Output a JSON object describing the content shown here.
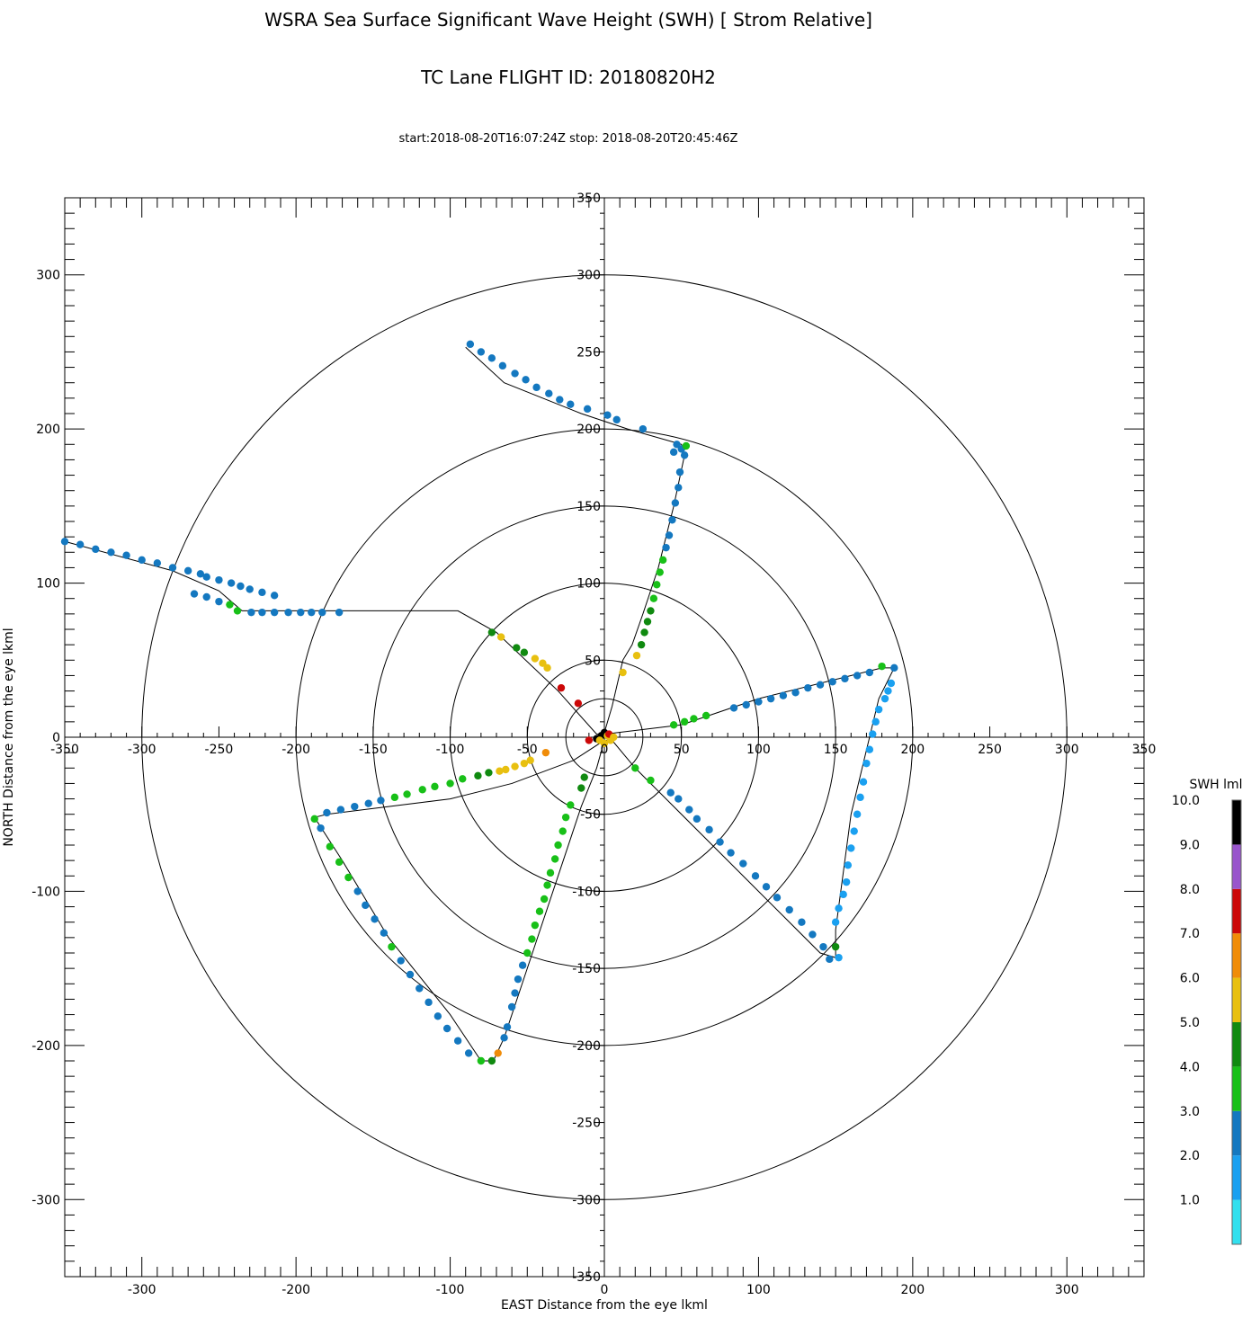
{
  "chart_data": {
    "type": "scatter",
    "title": "WSRA Sea Surface Significant Wave Height (SWH) [ Strom Relative]",
    "subtitle": "TC Lane FLIGHT ID: 20180820H2",
    "time_range": "start:2018-08-20T16:07:24Z stop: 2018-08-20T20:45:46Z",
    "xlabel": "EAST Distance from the eye lkml",
    "ylabel": "NORTH Distance from the eye lkml",
    "xlim": [
      -350,
      350
    ],
    "ylim": [
      -350,
      350
    ],
    "outer_ticks": {
      "x": [
        "-300",
        "-200",
        "-100",
        "0",
        "100",
        "200",
        "300"
      ],
      "y": [
        "-300",
        "-200",
        "-100",
        "0",
        "100",
        "200",
        "300"
      ]
    },
    "axis_ticks": [
      "-350",
      "-300",
      "-250",
      "-200",
      "-150",
      "-100",
      "-50",
      "0",
      "50",
      "100",
      "150",
      "200",
      "250",
      "300",
      "350"
    ],
    "range_rings_km": [
      25,
      50,
      100,
      150,
      200,
      300
    ],
    "colorbar": {
      "title": "SWH lml",
      "labels": [
        "1.0",
        "2.0",
        "3.0",
        "4.0",
        "5.0",
        "6.0",
        "7.0",
        "8.0",
        "9.0",
        "10.0"
      ],
      "colors": [
        "#33e0ee",
        "#1aa0f0",
        "#1478c0",
        "#18c018",
        "#108a10",
        "#e8c010",
        "#f08c08",
        "#cc0808",
        "#9955cc",
        "#000000"
      ]
    },
    "flight_track": [
      [
        -90,
        253
      ],
      [
        -65,
        230
      ],
      [
        -15,
        210
      ],
      [
        15,
        200
      ],
      [
        50,
        190
      ],
      [
        52,
        183
      ],
      [
        45,
        150
      ],
      [
        35,
        110
      ],
      [
        25,
        80
      ],
      [
        18,
        60
      ],
      [
        12,
        50
      ],
      [
        5,
        20
      ],
      [
        0,
        3
      ],
      [
        0,
        -2
      ],
      [
        -20,
        -15
      ],
      [
        -60,
        -30
      ],
      [
        -100,
        -40
      ],
      [
        -180,
        -50
      ],
      [
        -188,
        -52
      ],
      [
        -170,
        -80
      ],
      [
        -140,
        -130
      ],
      [
        -100,
        -180
      ],
      [
        -80,
        -210
      ],
      [
        -72,
        -210
      ],
      [
        -65,
        -195
      ],
      [
        -50,
        -150
      ],
      [
        -15,
        -45
      ],
      [
        -5,
        -20
      ],
      [
        0,
        -2
      ],
      [
        5,
        -2
      ],
      [
        20,
        -20
      ],
      [
        60,
        -60
      ],
      [
        140,
        -140
      ],
      [
        150,
        -143
      ],
      [
        150,
        -125
      ],
      [
        160,
        -50
      ],
      [
        178,
        25
      ],
      [
        188,
        45
      ],
      [
        180,
        45
      ],
      [
        100,
        25
      ],
      [
        50,
        8
      ],
      [
        0,
        2
      ],
      [
        -5,
        2
      ],
      [
        -30,
        30
      ],
      [
        -70,
        68
      ],
      [
        -95,
        82
      ],
      [
        -235,
        82
      ],
      [
        -250,
        95
      ],
      [
        -280,
        108
      ],
      [
        -350,
        127
      ]
    ],
    "points": [
      [
        -350,
        127,
        2
      ],
      [
        -340,
        125,
        2
      ],
      [
        -330,
        122,
        2
      ],
      [
        -320,
        120,
        2
      ],
      [
        -310,
        118,
        2
      ],
      [
        -300,
        115,
        2
      ],
      [
        -290,
        113,
        2
      ],
      [
        -280,
        110,
        2
      ],
      [
        -270,
        108,
        2
      ],
      [
        -262,
        106,
        2
      ],
      [
        -258,
        104,
        2
      ],
      [
        -250,
        102,
        2
      ],
      [
        -242,
        100,
        2
      ],
      [
        -236,
        98,
        2
      ],
      [
        -230,
        96,
        2
      ],
      [
        -222,
        94,
        2
      ],
      [
        -214,
        92,
        2
      ],
      [
        -266,
        93,
        2
      ],
      [
        -258,
        91,
        2
      ],
      [
        -250,
        88,
        2
      ],
      [
        -243,
        86,
        3
      ],
      [
        -238,
        82,
        3
      ],
      [
        -229,
        81,
        2
      ],
      [
        -222,
        81,
        2
      ],
      [
        -214,
        81,
        2
      ],
      [
        -205,
        81,
        2
      ],
      [
        -197,
        81,
        2
      ],
      [
        -190,
        81,
        2
      ],
      [
        -183,
        81,
        2
      ],
      [
        -172,
        81,
        2
      ],
      [
        -73,
        68,
        4
      ],
      [
        -67,
        65,
        5
      ],
      [
        -57,
        58,
        4
      ],
      [
        -52,
        55,
        4
      ],
      [
        -45,
        51,
        5
      ],
      [
        -40,
        48,
        5
      ],
      [
        -37,
        45,
        5
      ],
      [
        -28,
        32,
        7
      ],
      [
        -17,
        22,
        7
      ],
      [
        -10,
        -2,
        7
      ],
      [
        -5,
        -1,
        9
      ],
      [
        -2,
        1,
        9
      ],
      [
        0,
        3,
        9
      ],
      [
        2,
        1,
        5
      ],
      [
        4,
        -2,
        5
      ],
      [
        0,
        -4,
        5
      ],
      [
        -3,
        -2,
        5
      ],
      [
        3,
        2,
        7
      ],
      [
        6,
        0,
        5
      ],
      [
        -38,
        -10,
        6
      ],
      [
        -48,
        -15,
        5
      ],
      [
        -52,
        -17,
        5
      ],
      [
        -58,
        -19,
        5
      ],
      [
        -64,
        -21,
        5
      ],
      [
        -68,
        -22,
        5
      ],
      [
        -75,
        -23,
        4
      ],
      [
        -82,
        -25,
        4
      ],
      [
        -92,
        -27,
        3
      ],
      [
        -100,
        -30,
        3
      ],
      [
        -110,
        -32,
        3
      ],
      [
        -118,
        -34,
        3
      ],
      [
        -128,
        -37,
        3
      ],
      [
        -136,
        -39,
        3
      ],
      [
        -145,
        -41,
        2
      ],
      [
        -153,
        -43,
        2
      ],
      [
        -162,
        -45,
        2
      ],
      [
        -171,
        -47,
        2
      ],
      [
        -180,
        -49,
        2
      ],
      [
        -188,
        -53,
        3
      ],
      [
        -184,
        -59,
        2
      ],
      [
        -178,
        -71,
        3
      ],
      [
        -172,
        -81,
        3
      ],
      [
        -166,
        -91,
        3
      ],
      [
        -160,
        -100,
        2
      ],
      [
        -155,
        -109,
        2
      ],
      [
        -149,
        -118,
        2
      ],
      [
        -143,
        -127,
        2
      ],
      [
        -138,
        -136,
        3
      ],
      [
        -132,
        -145,
        2
      ],
      [
        -126,
        -154,
        2
      ],
      [
        -120,
        -163,
        2
      ],
      [
        -114,
        -172,
        2
      ],
      [
        -108,
        -181,
        2
      ],
      [
        -102,
        -189,
        2
      ],
      [
        -95,
        -197,
        2
      ],
      [
        -88,
        -205,
        2
      ],
      [
        -80,
        -210,
        3
      ],
      [
        -73,
        -210,
        4
      ],
      [
        -69,
        -205,
        6
      ],
      [
        -65,
        -195,
        2
      ],
      [
        -63,
        -188,
        2
      ],
      [
        -60,
        -175,
        2
      ],
      [
        -58,
        -166,
        2
      ],
      [
        -56,
        -157,
        2
      ],
      [
        -53,
        -148,
        2
      ],
      [
        -50,
        -140,
        3
      ],
      [
        -47,
        -131,
        3
      ],
      [
        -45,
        -122,
        3
      ],
      [
        -42,
        -113,
        3
      ],
      [
        -39,
        -105,
        3
      ],
      [
        -37,
        -96,
        3
      ],
      [
        -35,
        -88,
        3
      ],
      [
        -32,
        -79,
        3
      ],
      [
        -30,
        -70,
        3
      ],
      [
        -27,
        -61,
        3
      ],
      [
        -25,
        -52,
        3
      ],
      [
        -22,
        -44,
        3
      ],
      [
        -15,
        -33,
        4
      ],
      [
        -13,
        -26,
        4
      ],
      [
        20,
        -20,
        3
      ],
      [
        30,
        -28,
        3
      ],
      [
        43,
        -36,
        2
      ],
      [
        48,
        -40,
        2
      ],
      [
        55,
        -47,
        2
      ],
      [
        60,
        -53,
        2
      ],
      [
        68,
        -60,
        2
      ],
      [
        75,
        -68,
        2
      ],
      [
        82,
        -75,
        2
      ],
      [
        90,
        -82,
        2
      ],
      [
        98,
        -90,
        2
      ],
      [
        105,
        -97,
        2
      ],
      [
        112,
        -104,
        2
      ],
      [
        120,
        -112,
        2
      ],
      [
        128,
        -120,
        2
      ],
      [
        135,
        -128,
        2
      ],
      [
        142,
        -136,
        2
      ],
      [
        146,
        -144,
        2
      ],
      [
        150,
        -136,
        4
      ],
      [
        152,
        -143,
        1
      ],
      [
        150,
        -120,
        1
      ],
      [
        152,
        -111,
        1
      ],
      [
        155,
        -102,
        1
      ],
      [
        157,
        -94,
        1
      ],
      [
        158,
        -83,
        1
      ],
      [
        160,
        -72,
        1
      ],
      [
        162,
        -61,
        1
      ],
      [
        164,
        -50,
        1
      ],
      [
        166,
        -39,
        1
      ],
      [
        168,
        -29,
        1
      ],
      [
        170,
        -17,
        1
      ],
      [
        172,
        -8,
        1
      ],
      [
        174,
        2,
        1
      ],
      [
        176,
        10,
        1
      ],
      [
        178,
        18,
        1
      ],
      [
        182,
        25,
        1
      ],
      [
        184,
        30,
        1
      ],
      [
        186,
        35,
        1
      ],
      [
        188,
        45,
        2
      ],
      [
        180,
        46,
        3
      ],
      [
        172,
        42,
        2
      ],
      [
        164,
        40,
        2
      ],
      [
        156,
        38,
        2
      ],
      [
        148,
        36,
        2
      ],
      [
        140,
        34,
        2
      ],
      [
        132,
        32,
        2
      ],
      [
        124,
        29,
        2
      ],
      [
        116,
        27,
        2
      ],
      [
        108,
        25,
        2
      ],
      [
        100,
        23,
        2
      ],
      [
        92,
        21,
        2
      ],
      [
        84,
        19,
        2
      ],
      [
        66,
        14,
        3
      ],
      [
        58,
        12,
        3
      ],
      [
        52,
        10,
        3
      ],
      [
        45,
        8,
        3
      ],
      [
        -87,
        255,
        2
      ],
      [
        -80,
        250,
        2
      ],
      [
        -73,
        246,
        2
      ],
      [
        -66,
        241,
        2
      ],
      [
        -58,
        236,
        2
      ],
      [
        -51,
        232,
        2
      ],
      [
        -44,
        227,
        2
      ],
      [
        -36,
        223,
        2
      ],
      [
        -29,
        219,
        2
      ],
      [
        -22,
        216,
        2
      ],
      [
        -11,
        213,
        2
      ],
      [
        2,
        209,
        2
      ],
      [
        8,
        206,
        2
      ],
      [
        25,
        200,
        2
      ],
      [
        45,
        185,
        2
      ],
      [
        47,
        190,
        2
      ],
      [
        50,
        187,
        2
      ],
      [
        53,
        189,
        3
      ],
      [
        52,
        183,
        2
      ],
      [
        49,
        172,
        2
      ],
      [
        48,
        162,
        2
      ],
      [
        46,
        152,
        2
      ],
      [
        44,
        141,
        2
      ],
      [
        42,
        131,
        2
      ],
      [
        40,
        123,
        2
      ],
      [
        38,
        115,
        3
      ],
      [
        36,
        107,
        3
      ],
      [
        34,
        99,
        3
      ],
      [
        32,
        90,
        3
      ],
      [
        30,
        82,
        4
      ],
      [
        28,
        75,
        4
      ],
      [
        26,
        68,
        4
      ],
      [
        24,
        60,
        4
      ],
      [
        21,
        53,
        5
      ],
      [
        12,
        42,
        5
      ]
    ]
  }
}
